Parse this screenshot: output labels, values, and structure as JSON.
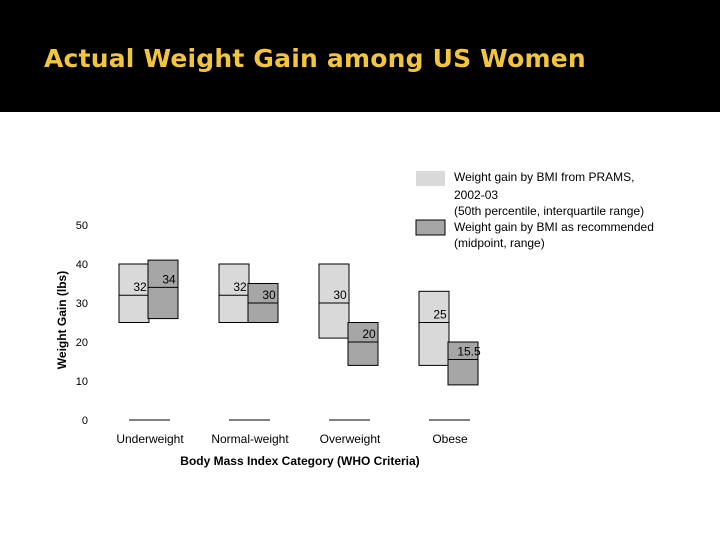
{
  "slide": {
    "title": "Actual Weight Gain among US Women"
  },
  "colors": {
    "title_bar": "#000000",
    "title_text": "#f2c53d",
    "prams_fill": "#d9d9d9",
    "recommended_fill": "#a6a6a6",
    "stroke": "#000000"
  },
  "chart_data": {
    "type": "floating-bar",
    "title": "",
    "xlabel": "Body Mass Index Category (WHO Criteria)",
    "ylabel": "Weight Gain (lbs)",
    "ylim": [
      0,
      50
    ],
    "yticks": [
      0,
      10,
      20,
      30,
      40,
      50
    ],
    "categories": [
      "Underweight",
      "Normal-weight",
      "Overweight",
      "Obese"
    ],
    "grid": false,
    "legend_position": "top-right",
    "series": [
      {
        "name": "Weight gain by BMI from PRAMS, 2002-03 (50th percentile, interquartile range)",
        "legend_lines": [
          "Weight gain by BMI from PRAMS,",
          "2002-03",
          "(50th percentile, interquartile range)"
        ],
        "color": "#d9d9d9",
        "low": [
          25,
          25,
          21,
          14
        ],
        "high": [
          40,
          40,
          40,
          33
        ],
        "mid": [
          32,
          32,
          30,
          25
        ],
        "labels": [
          "32",
          "32",
          "30",
          "25"
        ]
      },
      {
        "name": "Weight gain by BMI as recommended (midpoint, range)",
        "legend_lines": [
          "Weight gain by BMI as recommended",
          "(midpoint, range)"
        ],
        "color": "#a6a6a6",
        "low": [
          26,
          25,
          14,
          9
        ],
        "high": [
          41,
          35,
          25,
          20
        ],
        "mid": [
          34,
          30,
          20,
          15.5
        ],
        "labels": [
          "34",
          "30",
          "20",
          "15.5"
        ]
      }
    ]
  }
}
